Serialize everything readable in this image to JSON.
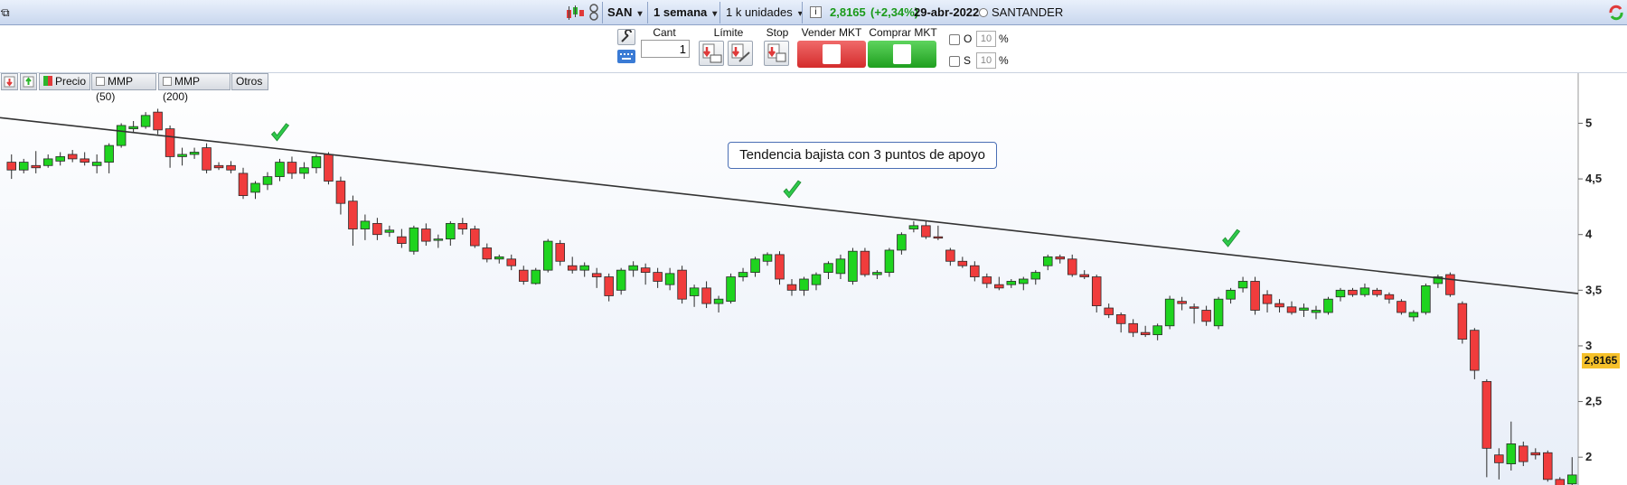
{
  "toolbar": {
    "symbol": "SAN",
    "period": "1 semana",
    "units": "1 k unidades",
    "price": "2,8165",
    "change": "(+2,34%)",
    "date": "29-abr-2022",
    "company": "SANTANDER",
    "colors": {
      "change": "#1a9a1a"
    }
  },
  "order": {
    "cant_label": "Cant",
    "cant_value": "1",
    "limite_label": "Límite",
    "stop_label": "Stop",
    "sell_label": "Vender MKT",
    "buy_label": "Comprar MKT",
    "o_label": "O",
    "s_label": "S",
    "o_value": "10",
    "s_value": "10",
    "pct": "%",
    "colors": {
      "sell": "#e03a3a",
      "buy": "#2db52d"
    }
  },
  "chart_tools": {
    "precio": "Precio",
    "mmp50": "MMP (50)",
    "mmp200": "MMP (200)",
    "otros": "Otros"
  },
  "chart_data": {
    "type": "candlestick",
    "symbol": "SAN",
    "interval": "1 semana",
    "y_ticks": [
      "5",
      "4,5",
      "4",
      "3,5",
      "3",
      "2,5",
      "2"
    ],
    "ylim": [
      1.75,
      5.45
    ],
    "current_price": "2,8165",
    "annotation": "Tendencia bajista con 3 puntos de apoyo",
    "trendline": {
      "from": [
        0,
        5.05
      ],
      "to": [
        1,
        3.47
      ]
    },
    "support_checkmarks": [
      22,
      64,
      100
    ],
    "colors": {
      "up": "#1fd41f",
      "down": "#f03c3c",
      "trendline": "#333333"
    },
    "ohlc": [
      [
        4.65,
        4.72,
        4.5,
        4.58
      ],
      [
        4.58,
        4.68,
        4.55,
        4.65
      ],
      [
        4.62,
        4.75,
        4.55,
        4.6
      ],
      [
        4.62,
        4.72,
        4.6,
        4.68
      ],
      [
        4.66,
        4.74,
        4.62,
        4.7
      ],
      [
        4.72,
        4.76,
        4.65,
        4.68
      ],
      [
        4.68,
        4.74,
        4.62,
        4.65
      ],
      [
        4.62,
        4.72,
        4.55,
        4.65
      ],
      [
        4.65,
        4.82,
        4.55,
        4.8
      ],
      [
        4.8,
        5.0,
        4.78,
        4.98
      ],
      [
        4.95,
        5.02,
        4.92,
        4.97
      ],
      [
        4.97,
        5.1,
        4.95,
        5.07
      ],
      [
        5.1,
        5.13,
        4.9,
        4.94
      ],
      [
        4.95,
        4.98,
        4.6,
        4.7
      ],
      [
        4.7,
        4.78,
        4.62,
        4.72
      ],
      [
        4.72,
        4.78,
        4.68,
        4.74
      ],
      [
        4.78,
        4.82,
        4.55,
        4.58
      ],
      [
        4.62,
        4.65,
        4.58,
        4.6
      ],
      [
        4.62,
        4.66,
        4.55,
        4.58
      ],
      [
        4.55,
        4.6,
        4.32,
        4.35
      ],
      [
        4.38,
        4.48,
        4.32,
        4.46
      ],
      [
        4.45,
        4.56,
        4.4,
        4.52
      ],
      [
        4.52,
        4.68,
        4.48,
        4.65
      ],
      [
        4.65,
        4.7,
        4.5,
        4.55
      ],
      [
        4.55,
        4.65,
        4.5,
        4.6
      ],
      [
        4.6,
        4.72,
        4.55,
        4.7
      ],
      [
        4.72,
        4.74,
        4.45,
        4.48
      ],
      [
        4.48,
        4.52,
        4.18,
        4.28
      ],
      [
        4.3,
        4.35,
        3.9,
        4.05
      ],
      [
        4.05,
        4.18,
        3.95,
        4.12
      ],
      [
        4.1,
        4.15,
        3.95,
        4.0
      ],
      [
        4.02,
        4.08,
        3.98,
        4.04
      ],
      [
        3.98,
        4.05,
        3.88,
        3.92
      ],
      [
        3.85,
        4.08,
        3.82,
        4.06
      ],
      [
        4.05,
        4.1,
        3.9,
        3.94
      ],
      [
        3.95,
        4.0,
        3.88,
        3.96
      ],
      [
        3.96,
        4.12,
        3.9,
        4.1
      ],
      [
        4.1,
        4.15,
        4.0,
        4.05
      ],
      [
        4.05,
        4.08,
        3.88,
        3.9
      ],
      [
        3.88,
        3.92,
        3.75,
        3.78
      ],
      [
        3.78,
        3.82,
        3.74,
        3.8
      ],
      [
        3.78,
        3.82,
        3.68,
        3.72
      ],
      [
        3.68,
        3.72,
        3.55,
        3.58
      ],
      [
        3.56,
        3.7,
        3.55,
        3.68
      ],
      [
        3.68,
        3.96,
        3.66,
        3.94
      ],
      [
        3.92,
        3.95,
        3.72,
        3.76
      ],
      [
        3.72,
        3.8,
        3.65,
        3.68
      ],
      [
        3.68,
        3.75,
        3.62,
        3.72
      ],
      [
        3.65,
        3.7,
        3.52,
        3.62
      ],
      [
        3.62,
        3.65,
        3.4,
        3.45
      ],
      [
        3.5,
        3.7,
        3.46,
        3.68
      ],
      [
        3.68,
        3.76,
        3.62,
        3.72
      ],
      [
        3.7,
        3.74,
        3.55,
        3.66
      ],
      [
        3.66,
        3.7,
        3.52,
        3.58
      ],
      [
        3.55,
        3.7,
        3.5,
        3.65
      ],
      [
        3.68,
        3.72,
        3.38,
        3.42
      ],
      [
        3.45,
        3.55,
        3.35,
        3.52
      ],
      [
        3.52,
        3.58,
        3.34,
        3.38
      ],
      [
        3.38,
        3.45,
        3.3,
        3.42
      ],
      [
        3.4,
        3.65,
        3.38,
        3.62
      ],
      [
        3.62,
        3.7,
        3.58,
        3.66
      ],
      [
        3.66,
        3.8,
        3.62,
        3.78
      ],
      [
        3.76,
        3.84,
        3.72,
        3.82
      ],
      [
        3.82,
        3.85,
        3.55,
        3.6
      ],
      [
        3.55,
        3.6,
        3.45,
        3.5
      ],
      [
        3.5,
        3.62,
        3.45,
        3.6
      ],
      [
        3.55,
        3.66,
        3.5,
        3.64
      ],
      [
        3.66,
        3.76,
        3.6,
        3.74
      ],
      [
        3.65,
        3.82,
        3.6,
        3.78
      ],
      [
        3.58,
        3.88,
        3.55,
        3.85
      ],
      [
        3.85,
        3.88,
        3.62,
        3.64
      ],
      [
        3.64,
        3.68,
        3.6,
        3.66
      ],
      [
        3.66,
        3.88,
        3.62,
        3.86
      ],
      [
        3.86,
        4.02,
        3.82,
        4.0
      ],
      [
        4.05,
        4.12,
        4.02,
        4.08
      ],
      [
        4.08,
        4.12,
        3.96,
        3.98
      ],
      [
        3.98,
        4.08,
        3.95,
        3.97
      ],
      [
        3.86,
        3.88,
        3.72,
        3.76
      ],
      [
        3.76,
        3.8,
        3.7,
        3.72
      ],
      [
        3.72,
        3.76,
        3.58,
        3.62
      ],
      [
        3.62,
        3.65,
        3.52,
        3.56
      ],
      [
        3.55,
        3.62,
        3.5,
        3.52
      ],
      [
        3.55,
        3.6,
        3.52,
        3.58
      ],
      [
        3.56,
        3.62,
        3.5,
        3.6
      ],
      [
        3.6,
        3.68,
        3.55,
        3.66
      ],
      [
        3.72,
        3.82,
        3.68,
        3.8
      ],
      [
        3.8,
        3.82,
        3.74,
        3.78
      ],
      [
        3.78,
        3.82,
        3.62,
        3.64
      ],
      [
        3.64,
        3.68,
        3.6,
        3.62
      ],
      [
        3.62,
        3.64,
        3.3,
        3.36
      ],
      [
        3.34,
        3.38,
        3.25,
        3.28
      ],
      [
        3.28,
        3.3,
        3.12,
        3.2
      ],
      [
        3.2,
        3.24,
        3.08,
        3.12
      ],
      [
        3.12,
        3.18,
        3.08,
        3.1
      ],
      [
        3.1,
        3.2,
        3.05,
        3.18
      ],
      [
        3.18,
        3.45,
        3.15,
        3.42
      ],
      [
        3.4,
        3.44,
        3.32,
        3.38
      ],
      [
        3.35,
        3.38,
        3.2,
        3.34
      ],
      [
        3.32,
        3.36,
        3.18,
        3.22
      ],
      [
        3.18,
        3.44,
        3.15,
        3.42
      ],
      [
        3.42,
        3.52,
        3.38,
        3.5
      ],
      [
        3.52,
        3.62,
        3.48,
        3.58
      ],
      [
        3.58,
        3.62,
        3.28,
        3.32
      ],
      [
        3.46,
        3.5,
        3.3,
        3.38
      ],
      [
        3.38,
        3.42,
        3.3,
        3.35
      ],
      [
        3.35,
        3.4,
        3.28,
        3.3
      ],
      [
        3.32,
        3.38,
        3.26,
        3.34
      ],
      [
        3.3,
        3.36,
        3.24,
        3.32
      ],
      [
        3.3,
        3.44,
        3.28,
        3.42
      ],
      [
        3.44,
        3.52,
        3.4,
        3.5
      ],
      [
        3.5,
        3.52,
        3.44,
        3.46
      ],
      [
        3.46,
        3.56,
        3.44,
        3.52
      ],
      [
        3.5,
        3.52,
        3.44,
        3.46
      ],
      [
        3.46,
        3.48,
        3.38,
        3.42
      ],
      [
        3.4,
        3.42,
        3.28,
        3.3
      ],
      [
        3.26,
        3.32,
        3.22,
        3.3
      ],
      [
        3.3,
        3.56,
        3.28,
        3.54
      ],
      [
        3.56,
        3.64,
        3.52,
        3.62
      ],
      [
        3.64,
        3.66,
        3.44,
        3.46
      ],
      [
        3.38,
        3.4,
        3.02,
        3.06
      ],
      [
        3.14,
        3.16,
        2.7,
        2.78
      ],
      [
        2.68,
        2.7,
        1.82,
        2.08
      ],
      [
        2.02,
        2.08,
        1.8,
        1.95
      ],
      [
        1.94,
        2.32,
        1.88,
        2.12
      ],
      [
        2.1,
        2.14,
        1.92,
        1.96
      ],
      [
        2.04,
        2.08,
        1.98,
        2.02
      ],
      [
        2.04,
        2.06,
        1.78,
        1.8
      ],
      [
        1.8,
        1.82,
        1.72,
        1.74
      ],
      [
        1.76,
        2.0,
        1.74,
        1.84
      ]
    ]
  }
}
